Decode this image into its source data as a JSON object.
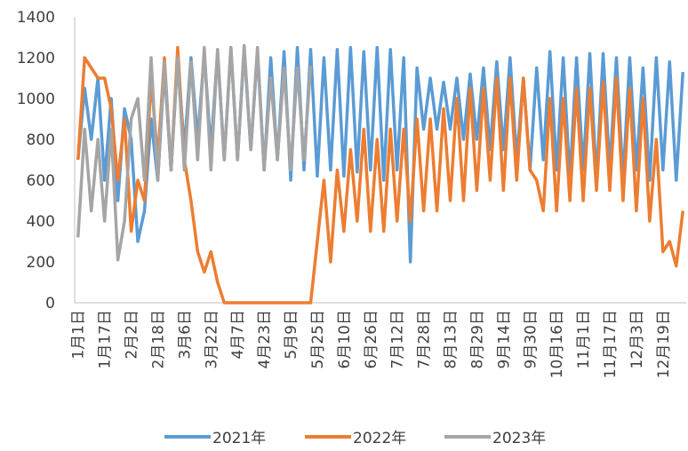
{
  "chart_data": {
    "type": "line",
    "categories": [
      "1月1日",
      null,
      null,
      null,
      "1月17日",
      null,
      null,
      null,
      "2月2日",
      null,
      null,
      null,
      "2月18日",
      null,
      null,
      null,
      "3月6日",
      null,
      null,
      null,
      "3月22日",
      null,
      null,
      null,
      "4月7日",
      null,
      null,
      null,
      "4月23日",
      null,
      null,
      null,
      "5月9日",
      null,
      null,
      null,
      "5月25日",
      null,
      null,
      null,
      "6月10日",
      null,
      null,
      null,
      "6月26日",
      null,
      null,
      null,
      "7月12日",
      null,
      null,
      null,
      "7月28日",
      null,
      null,
      null,
      "8月13日",
      null,
      null,
      null,
      "8月29日",
      null,
      null,
      null,
      "9月14日",
      null,
      null,
      null,
      "9月30日",
      null,
      null,
      null,
      "10月16日",
      null,
      null,
      null,
      "11月1日",
      null,
      null,
      null,
      "11月17日",
      null,
      null,
      null,
      "12月3日",
      null,
      null,
      null,
      "12月19日",
      null,
      null,
      null
    ],
    "series": [
      {
        "name": "2021年",
        "color": "#5b9bd5",
        "values": [
          700,
          1050,
          800,
          1100,
          600,
          1000,
          500,
          950,
          800,
          300,
          450,
          900,
          600,
          1150,
          650,
          1200,
          750,
          1200,
          800,
          1220,
          750,
          1230,
          700,
          1250,
          700,
          1240,
          750,
          1230,
          650,
          1200,
          700,
          1230,
          600,
          1250,
          650,
          1240,
          620,
          1200,
          650,
          1240,
          620,
          1250,
          640,
          1230,
          650,
          1250,
          600,
          1240,
          650,
          1200,
          200,
          1150,
          850,
          1100,
          850,
          1080,
          850,
          1100,
          800,
          1120,
          800,
          1150,
          750,
          1180,
          750,
          1200,
          700,
          1100,
          650,
          1150,
          700,
          1230,
          650,
          1200,
          600,
          1200,
          650,
          1220,
          600,
          1220,
          650,
          1200,
          600,
          1200,
          650,
          1150,
          600,
          1200,
          650,
          1180,
          600,
          1130
        ]
      },
      {
        "name": "2022年",
        "color": "#ed7d31",
        "values": [
          700,
          1200,
          1150,
          1100,
          1100,
          950,
          600,
          900,
          350,
          600,
          500,
          1100,
          700,
          1200,
          650,
          1250,
          700,
          500,
          250,
          150,
          250,
          100,
          0,
          0,
          0,
          0,
          0,
          0,
          0,
          0,
          0,
          0,
          0,
          0,
          0,
          0,
          300,
          600,
          200,
          650,
          350,
          750,
          400,
          850,
          350,
          800,
          350,
          850,
          400,
          850,
          400,
          900,
          450,
          900,
          450,
          950,
          500,
          1000,
          500,
          1050,
          550,
          1050,
          600,
          1100,
          550,
          1100,
          600,
          1100,
          650,
          600,
          450,
          1000,
          450,
          1000,
          500,
          1050,
          500,
          1050,
          550,
          1080,
          550,
          1100,
          500,
          1050,
          450,
          1000,
          400,
          800,
          250,
          300,
          180,
          450
        ]
      },
      {
        "name": "2023年",
        "color": "#a5a5a5",
        "values": [
          320,
          850,
          450,
          800,
          400,
          850,
          210,
          400,
          900,
          1000,
          600,
          1200,
          600,
          1180,
          650,
          1200,
          650,
          1180,
          700,
          1250,
          650,
          1240,
          700,
          1250,
          700,
          1260,
          750,
          1250,
          650,
          1100,
          700,
          1150,
          650,
          1150,
          700,
          1160,
          null,
          null,
          null,
          null,
          null,
          null,
          null,
          null,
          null,
          null,
          null,
          null,
          null,
          null,
          null,
          null,
          null,
          null,
          null,
          null,
          null,
          null,
          null,
          null,
          null,
          null,
          null,
          null,
          null,
          null,
          null,
          null,
          null,
          null,
          null,
          null,
          null,
          null,
          null,
          null,
          null,
          null,
          null,
          null,
          null,
          null,
          null,
          null,
          null,
          null,
          null,
          null,
          null,
          null,
          null,
          null
        ]
      }
    ],
    "ylim": [
      0,
      1400
    ],
    "yticks": [
      0,
      200,
      400,
      600,
      800,
      1000,
      1200,
      1400
    ],
    "grid": false,
    "legend": "bottom"
  }
}
